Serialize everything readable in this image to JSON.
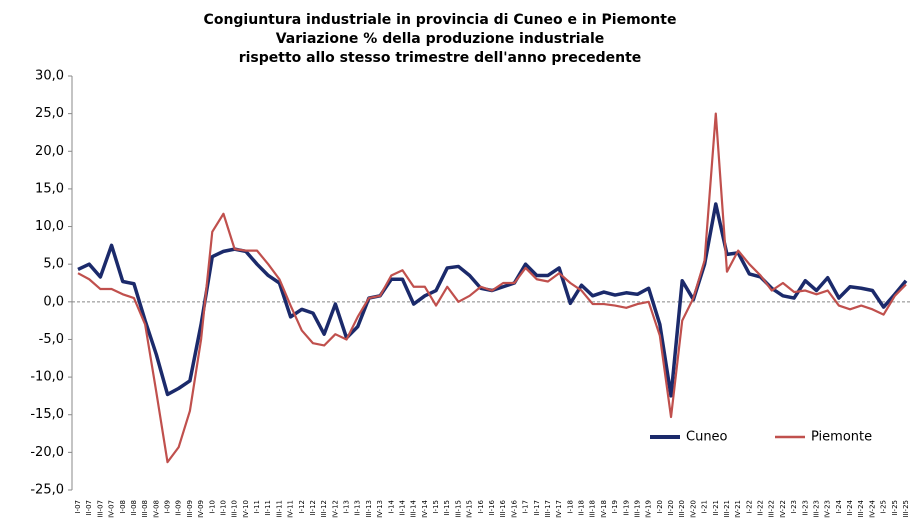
{
  "chart_data": {
    "type": "line",
    "title": [
      "Congiuntura industriale in provincia di Cuneo e in Piemonte",
      "Variazione % della produzione industriale",
      "rispetto allo stesso trimestre dell'anno precedente"
    ],
    "categories": [
      "I-07",
      "II-07",
      "III-07",
      "IV-07",
      "I-08",
      "II-08",
      "III-08",
      "IV-08",
      "I-09",
      "II-09",
      "III-09",
      "IV-09",
      "I-10",
      "II-10",
      "III-10",
      "IV-10",
      "I-11",
      "II-11",
      "III-11",
      "IV-11",
      "I-12",
      "II-12",
      "III-12",
      "IV-12",
      "I-13",
      "II-13",
      "III-13",
      "IV-13",
      "I-14",
      "II-14",
      "III-14",
      "IV-14",
      "I-15",
      "II-15",
      "III-15",
      "IV-15",
      "I-16",
      "II-16",
      "III-16",
      "IV-16",
      "I-17",
      "II-17",
      "III-17",
      "IV-17",
      "I-18",
      "II-18",
      "III-18",
      "IV-18",
      "I-19",
      "II-19",
      "III-19",
      "IV-19",
      "I-20",
      "II-20",
      "III-20",
      "IV-20",
      "I-21",
      "II-21",
      "III-21",
      "IV-21",
      "I-22",
      "II-22",
      "III-22",
      "IV-22",
      "I-23",
      "II-23",
      "III-23",
      "IV-23",
      "I-24",
      "II-24",
      "III-24",
      "IV-24",
      "I-25",
      "II-25",
      "III-25"
    ],
    "series": [
      {
        "name": "Cuneo",
        "color": "#1b2a6b",
        "values": [
          4.3,
          5,
          3.3,
          7.5,
          2.7,
          2.4,
          -2.5,
          -7,
          -12.3,
          -11.5,
          -10.5,
          -3,
          6,
          6.7,
          7,
          6.7,
          5,
          3.5,
          2.5,
          -2,
          -1,
          -1.5,
          -4.3,
          -0.3,
          -4.8,
          -3.3,
          0.5,
          0.8,
          3,
          3,
          -0.3,
          0.8,
          1.5,
          4.5,
          4.7,
          3.5,
          1.8,
          1.5,
          2,
          2.5,
          5,
          3.5,
          3.5,
          4.5,
          -0.2,
          2.2,
          0.8,
          1.3,
          0.9,
          1.2,
          1,
          1.8,
          -3,
          -12.5,
          2.8,
          0.3,
          5,
          13,
          6.3,
          6.5,
          3.7,
          3.3,
          1.8,
          0.8,
          0.5,
          2.8,
          1.5,
          3.2,
          0.5,
          2,
          1.8,
          1.5,
          -0.7,
          1,
          2.8
        ]
      },
      {
        "name": "Piemonte",
        "color": "#c0504d",
        "values": [
          3.8,
          3,
          1.7,
          1.7,
          1,
          0.5,
          -3,
          -12,
          -21.3,
          -19.3,
          -14.5,
          -5,
          9.3,
          11.7,
          7,
          6.8,
          6.8,
          5,
          3,
          -0.5,
          -3.8,
          -5.5,
          -5.8,
          -4.3,
          -5,
          -2,
          0.5,
          0.8,
          3.5,
          4.2,
          2,
          2,
          -0.5,
          2,
          0,
          0.8,
          2,
          1.5,
          2.5,
          2.5,
          4.5,
          3,
          2.7,
          3.8,
          2.5,
          1.5,
          -0.3,
          -0.3,
          -0.5,
          -0.8,
          -0.3,
          0,
          -4.5,
          -15.3,
          -2.5,
          0.5,
          5.5,
          25,
          4,
          6.8,
          5,
          3.5,
          1.5,
          2.5,
          1.3,
          1.5,
          1,
          1.5,
          -0.5,
          -1,
          -0.5,
          -1,
          -1.7,
          0.8,
          2.3
        ]
      }
    ],
    "ylim": [
      -25,
      30
    ],
    "yticks": [
      {
        "value": -25,
        "label": "-25,0"
      },
      {
        "value": -20,
        "label": "-20,0"
      },
      {
        "value": -15,
        "label": "-15,0"
      },
      {
        "value": -10,
        "label": "-10,0"
      },
      {
        "value": -5,
        "label": "-5,0"
      },
      {
        "value": 0,
        "label": "0,0"
      },
      {
        "value": 5,
        "label": "5,0"
      },
      {
        "value": 10,
        "label": "10,0"
      },
      {
        "value": 15,
        "label": "15,0"
      },
      {
        "value": 20,
        "label": "20,0"
      },
      {
        "value": 25,
        "label": "25,0"
      },
      {
        "value": 30,
        "label": "30,0"
      }
    ],
    "grid": false,
    "legend": "lower right"
  }
}
